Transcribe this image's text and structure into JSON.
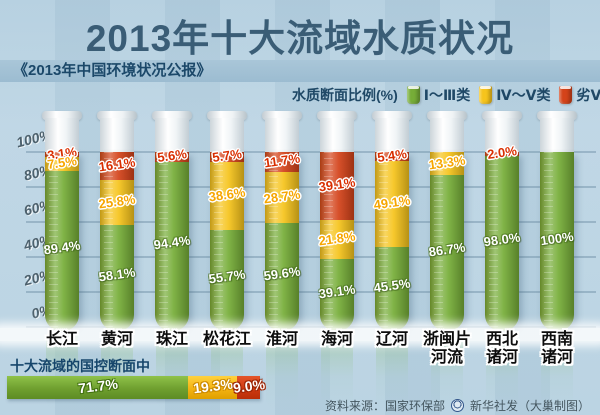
{
  "title": "2013年十大流域水质状况",
  "subtitle": "《2013年中国环境状况公报》",
  "legend": {
    "label": "水质断面比例(%)",
    "items": [
      {
        "name": "Ⅰ～Ⅲ类",
        "color": "#76ad38"
      },
      {
        "name": "Ⅳ～Ⅴ类",
        "color": "#f6c41c"
      },
      {
        "name": "劣Ⅴ类",
        "color": "#d4431a"
      }
    ]
  },
  "chart_data": {
    "type": "bar",
    "stacked": true,
    "unit": "%",
    "title": "2013年十大流域水质状况",
    "ylabel": "水质断面比例(%)",
    "ylim": [
      0,
      100
    ],
    "grid": true,
    "yticks": [
      {
        "label": "100%",
        "value": 100
      },
      {
        "label": "80%",
        "value": 80
      },
      {
        "label": "60%",
        "value": 60
      },
      {
        "label": "40%",
        "value": 40
      },
      {
        "label": "20%",
        "value": 20
      },
      {
        "label": "0%",
        "value": 0
      }
    ],
    "categories": [
      "长江",
      "黄河",
      "珠江",
      "松花江",
      "淮河",
      "海河",
      "辽河",
      "浙闽片河流",
      "西北诸河",
      "西南诸河"
    ],
    "category_display": [
      [
        "长江"
      ],
      [
        "黄河"
      ],
      [
        "珠江"
      ],
      [
        "松花江"
      ],
      [
        "淮河"
      ],
      [
        "海河"
      ],
      [
        "辽河"
      ],
      [
        "浙闽片",
        "河流"
      ],
      [
        "西北",
        "诸河"
      ],
      [
        "西南",
        "诸河"
      ]
    ],
    "series": [
      {
        "name": "Ⅰ～Ⅲ类",
        "color_key": "green",
        "values": [
          89.4,
          58.1,
          94.4,
          55.7,
          59.6,
          39.1,
          45.5,
          86.7,
          98.0,
          100
        ],
        "labels": [
          "89.4%",
          "58.1%",
          "94.4%",
          "55.7%",
          "59.6%",
          "39.1%",
          "45.5%",
          "86.7%",
          "98.0%",
          "100%"
        ]
      },
      {
        "name": "Ⅳ～Ⅴ类",
        "color_key": "yellow",
        "values": [
          7.5,
          25.8,
          0,
          38.6,
          28.7,
          21.8,
          49.1,
          13.3,
          0,
          0
        ],
        "labels": [
          "7.5%",
          "25.8%",
          null,
          "38.6%",
          "28.7%",
          "21.8%",
          "49.1%",
          "13.3%",
          null,
          null
        ]
      },
      {
        "name": "劣Ⅴ类",
        "color_key": "red",
        "values": [
          3.1,
          16.1,
          5.6,
          5.7,
          11.7,
          39.1,
          5.4,
          0,
          2.0,
          0
        ],
        "labels": [
          "3.1%",
          "16.1%",
          "5.6%",
          "5.7%",
          "11.7%",
          "39.1%",
          "5.4%",
          null,
          "2.0%",
          null
        ]
      }
    ]
  },
  "summary": {
    "caption": "十大流域的国控断面中",
    "segments": [
      {
        "label": "71.7%",
        "value": 71.7,
        "color_key": "green"
      },
      {
        "label": "19.3%",
        "value": 19.3,
        "color_key": "yellow"
      },
      {
        "label": "9.0%",
        "value": 9.0,
        "color_key": "red"
      }
    ]
  },
  "source": {
    "prefix": "资料来源：国家环保部",
    "suffix": "新华社发（大巢制图）"
  }
}
